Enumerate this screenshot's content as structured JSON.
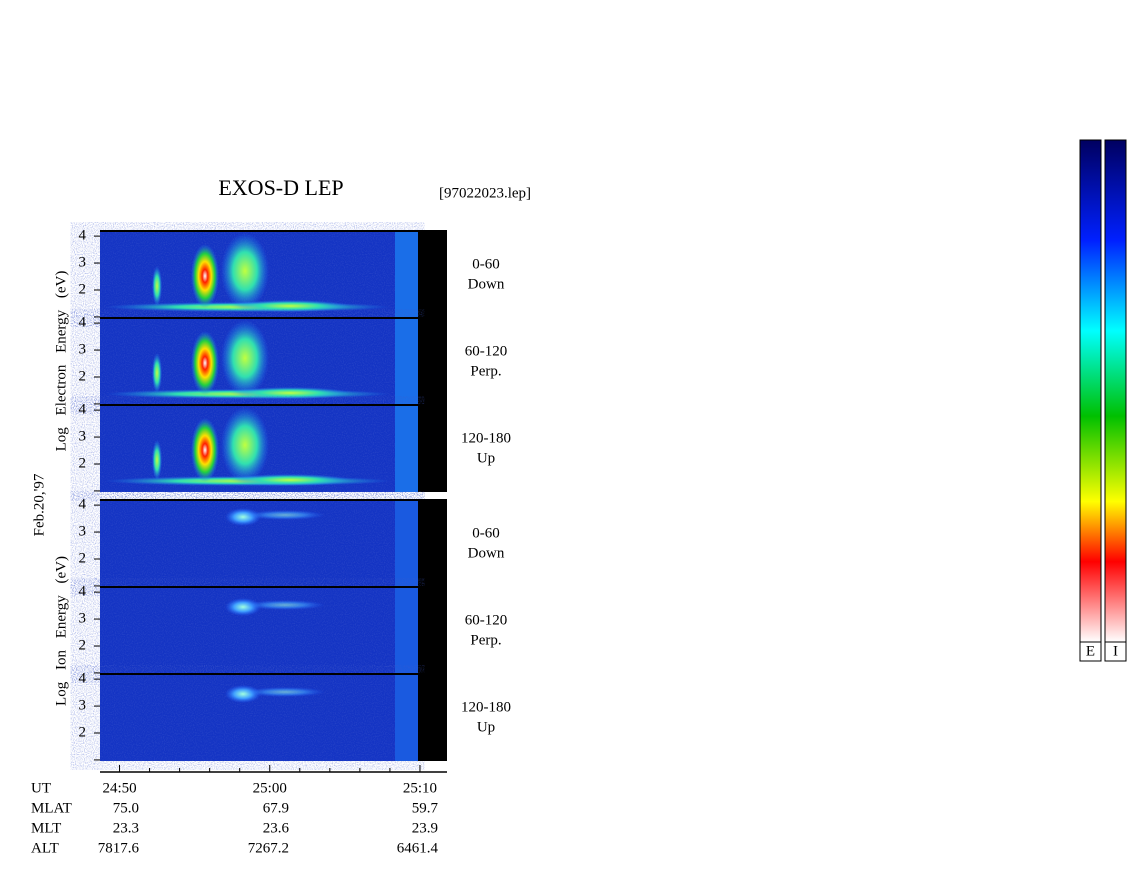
{
  "chart_data": {
    "type": "spectrogram",
    "title": "EXOS-D LEP",
    "file_label": "[97022023.lep]",
    "date_label": "Feb.20,'97",
    "groups": [
      {
        "label": "Log Electron Energy (eV)",
        "panels": [
          {
            "range": "0-60",
            "direction": "Down"
          },
          {
            "range": "60-120",
            "direction": "Perp."
          },
          {
            "range": "120-180",
            "direction": "Up"
          }
        ]
      },
      {
        "label": "Log Ion Energy (eV)",
        "panels": [
          {
            "range": "0-60",
            "direction": "Down"
          },
          {
            "range": "60-120",
            "direction": "Perp."
          },
          {
            "range": "120-180",
            "direction": "Up"
          }
        ]
      }
    ],
    "ylim": [
      0.96,
      4.19
    ],
    "yticks": [
      2,
      3,
      4
    ],
    "yminorticks": [
      1
    ],
    "xlim": [
      48.7,
      71.8
    ],
    "xticks": [
      {
        "value": 50,
        "label": "24:50"
      },
      {
        "value": 60,
        "label": "25:00"
      },
      {
        "value": 70,
        "label": "25:10"
      }
    ],
    "xminorticks": [
      52,
      54,
      56,
      58,
      62,
      64,
      66,
      68
    ],
    "ut_label": "UT",
    "orbit_rows": [
      {
        "name": "MLAT",
        "values": [
          "75.0",
          "67.9",
          "59.7"
        ]
      },
      {
        "name": "MLT",
        "values": [
          "23.3",
          "23.6",
          "23.9"
        ]
      },
      {
        "name": "ALT",
        "values": [
          "7817.6",
          "7267.2",
          "6461.4"
        ]
      }
    ],
    "colorbar_labels": [
      "E",
      "I"
    ]
  }
}
